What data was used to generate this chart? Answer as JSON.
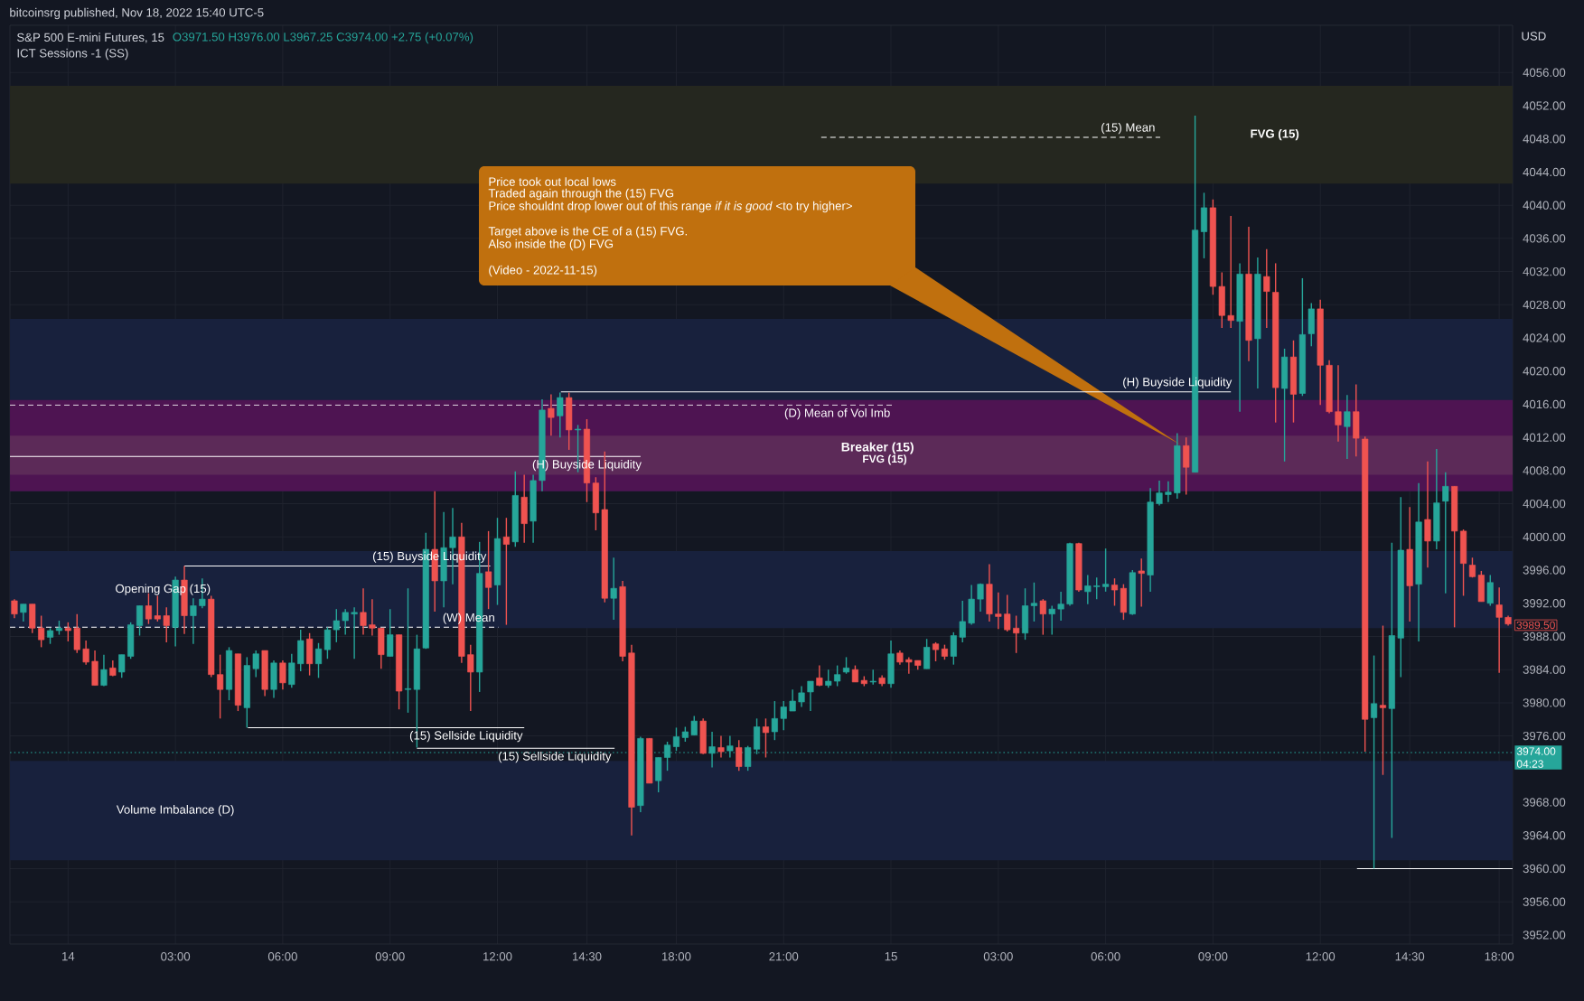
{
  "chart_data": {
    "type": "candlestick",
    "title": "S&P 500 E-mini Futures, 15",
    "ylabel": "USD",
    "annotations": [
      "bitcoinsrg published, Nov 18, 2022 15:40 UTC-5",
      "O3971.50 H3976.00 L3967.25 C3974.00 +2.75 (+0.07%)",
      "ICT Sessions -1 (SS)",
      "Price took out local lows",
      "Traded again through the (15) FVG",
      "Price shouldnt drop lower out of this range *if it is good* <to try higher>",
      "Target above is the CE of a (15) FVG.",
      "Also inside the (D) FVG",
      "(Video - 2022-11-15)",
      "3989.50",
      "FVG (15)"
    ],
    "categories": [
      null,
      null,
      null,
      null,
      null,
      null,
      "14",
      null,
      null,
      null,
      null,
      null,
      null,
      null,
      null,
      null,
      null,
      null,
      "03:00",
      null,
      null,
      null,
      null,
      null,
      null,
      null,
      null,
      null,
      null,
      null,
      "06:00",
      null,
      null,
      null,
      null,
      null,
      null,
      null,
      null,
      null,
      null,
      null,
      "09:00",
      null,
      null,
      null,
      null,
      null,
      null,
      null,
      null,
      null,
      null,
      null,
      "12:00",
      null,
      null,
      null,
      null,
      null,
      null,
      null,
      null,
      null,
      "14:30",
      null,
      null,
      null,
      null,
      null,
      null,
      null,
      null,
      null,
      "18:00",
      null,
      null,
      null,
      null,
      null,
      null,
      null,
      null,
      null,
      null,
      null,
      "21:00",
      null,
      null,
      null,
      null,
      null,
      null,
      null,
      null,
      null,
      null,
      null,
      "15",
      null,
      null,
      null,
      null,
      null,
      null,
      null,
      null,
      null,
      null,
      null,
      "03:00",
      null,
      null,
      null,
      null,
      null,
      null,
      null,
      null,
      null,
      null,
      null,
      "06:00",
      null,
      null,
      null,
      null,
      null,
      null,
      null,
      null,
      null,
      null,
      null,
      "09:00",
      null,
      null,
      null,
      null,
      null,
      null,
      null,
      null,
      null,
      null,
      null,
      "12:00",
      null,
      null,
      null,
      null,
      null,
      null,
      null,
      null,
      null,
      "14:30",
      null,
      null,
      null,
      null,
      null,
      null,
      null,
      null,
      null,
      "18:00",
      null
    ],
    "colors": [
      "#ef5350",
      "#26a69a",
      "#ef5350",
      "#ef5350",
      "#26a69a",
      "#26a69a",
      "#ef5350",
      "#ef5350",
      "#ef5350",
      "#ef5350",
      "#26a69a",
      "#ef5350",
      "#26a69a",
      "#26a69a",
      "#26a69a",
      "#ef5350",
      "#ef5350",
      "#ef5350",
      "#26a69a",
      "#ef5350",
      "#26a69a",
      "#26a69a",
      "#ef5350",
      "#ef5350",
      "#26a69a",
      "#ef5350",
      "#26a69a",
      "#26a69a",
      "#ef5350",
      "#26a69a",
      "#ef5350",
      "#26a69a",
      "#26a69a",
      "#ef5350",
      "#26a69a",
      "#26a69a",
      "#26a69a",
      "#26a69a",
      "#26a69a",
      "#ef5350",
      "#ef5350",
      "#ef5350",
      "#26a69a",
      "#ef5350",
      "#26a69a",
      "#26a69a",
      "#26a69a",
      "#ef5350",
      "#26a69a",
      "#26a69a",
      "#ef5350",
      "#ef5350",
      "#26a69a",
      "#ef5350",
      "#26a69a",
      "#ef5350",
      "#26a69a",
      "#ef5350",
      "#26a69a",
      "#26a69a",
      "#ef5350",
      "#26a69a",
      "#ef5350",
      "#26a69a",
      "#ef5350",
      "#ef5350",
      "#ef5350",
      "#26a69a",
      "#ef5350",
      "#ef5350",
      "#26a69a",
      "#ef5350",
      "#26a69a",
      "#26a69a",
      "#26a69a",
      "#26a69a",
      "#26a69a",
      "#ef5350",
      "#26a69a",
      "#ef5350",
      "#26a69a",
      "#ef5350",
      "#26a69a",
      "#26a69a",
      "#ef5350",
      "#26a69a",
      "#26a69a",
      "#26a69a",
      "#26a69a",
      "#26a69a",
      "#ef5350",
      "#26a69a",
      "#26a69a",
      "#26a69a",
      "#ef5350",
      "#ef5350",
      "#26a69a",
      "#ef5350",
      "#26a69a",
      "#ef5350",
      "#ef5350",
      "#ef5350",
      "#26a69a",
      "#ef5350",
      "#ef5350",
      "#26a69a",
      "#26a69a",
      "#26a69a",
      "#26a69a",
      "#ef5350",
      "#ef5350",
      "#ef5350",
      "#ef5350",
      "#26a69a",
      "#26a69a",
      "#ef5350",
      "#26a69a",
      "#26a69a",
      "#26a69a",
      "#ef5350",
      "#26a69a",
      "#26a69a",
      "#26a69a",
      "#ef5350",
      "#ef5350",
      "#26a69a",
      "#ef5350",
      "#26a69a",
      "#26a69a",
      "#26a69a",
      "#26a69a",
      "#ef5350",
      "#26a69a",
      "#26a69a",
      "#ef5350",
      "#ef5350",
      "#ef5350",
      "#26a69a",
      "#ef5350",
      "#26a69a",
      "#ef5350",
      "#ef5350",
      "#26a69a",
      "#ef5350",
      "#26a69a",
      "#26a69a",
      "#ef5350",
      "#ef5350",
      "#ef5350",
      "#26a69a",
      "#ef5350",
      "#ef5350",
      "#26a69a",
      "#ef5350",
      "#26a69a",
      "#26a69a",
      "#ef5350",
      "#26a69a",
      "#ef5350",
      "#26a69a",
      "#26a69a",
      "#ef5350",
      "#ef5350",
      "#ef5350",
      "#ef5350",
      "#26a69a",
      "#ef5350",
      "#ef5350"
    ],
    "ohlc": [
      [
        3992.3,
        3992.5,
        3990.2,
        3990.7
      ],
      [
        3990.9,
        3991.9,
        3989.8,
        3991.9
      ],
      [
        3991.9,
        3991.9,
        3988.4,
        3989.0
      ],
      [
        3989.0,
        3990.5,
        3986.7,
        3987.6
      ],
      [
        3987.9,
        3989.0,
        3987.1,
        3988.7
      ],
      [
        3988.7,
        3989.9,
        3988.2,
        3989.0
      ],
      [
        3989.0,
        3989.7,
        3987.4,
        3988.7
      ],
      [
        3989.0,
        3990.7,
        3986.0,
        3986.4
      ],
      [
        3986.5,
        3987.5,
        3984.6,
        3984.9
      ],
      [
        3985.0,
        3986.3,
        3982.1,
        3982.1
      ],
      [
        3982.1,
        3985.8,
        3982.0,
        3984.0
      ],
      [
        3984.2,
        3985.1,
        3983.2,
        3983.3
      ],
      [
        3983.7,
        3985.8,
        3983.0,
        3985.8
      ],
      [
        3985.6,
        3989.7,
        3985.3,
        3989.4
      ],
      [
        3989.3,
        3991.7,
        3988.1,
        3991.7
      ],
      [
        3991.7,
        3993.2,
        3989.5,
        3990.1
      ],
      [
        3990.5,
        3992.9,
        3989.8,
        3990.1
      ],
      [
        3990.5,
        3991.5,
        3987.3,
        3989.3
      ],
      [
        3989.1,
        3995.2,
        3986.8,
        3994.8
      ],
      [
        3994.8,
        3996.5,
        3988.3,
        3990.5
      ],
      [
        3990.5,
        3992.6,
        3987.1,
        3991.7
      ],
      [
        3991.7,
        3995.0,
        3991.4,
        3992.5
      ],
      [
        3992.5,
        3992.9,
        3983.1,
        3983.4
      ],
      [
        3983.4,
        3985.8,
        3978.1,
        3981.6
      ],
      [
        3981.6,
        3986.7,
        3980.3,
        3986.3
      ],
      [
        3985.9,
        3985.9,
        3979.0,
        3979.7
      ],
      [
        3979.4,
        3985.5,
        3977.0,
        3984.5
      ],
      [
        3984.1,
        3986.3,
        3983.1,
        3985.9
      ],
      [
        3986.3,
        3986.3,
        3980.8,
        3981.6
      ],
      [
        3981.6,
        3985.1,
        3980.6,
        3984.8
      ],
      [
        3984.8,
        3985.1,
        3981.6,
        3982.4
      ],
      [
        3982.2,
        3985.9,
        3981.8,
        3984.8
      ],
      [
        3984.7,
        3988.8,
        3983.8,
        3987.5
      ],
      [
        3987.7,
        3988.4,
        3983.3,
        3984.7
      ],
      [
        3984.7,
        3987.2,
        3983.0,
        3986.5
      ],
      [
        3986.4,
        3989.1,
        3985.3,
        3988.8
      ],
      [
        3988.8,
        3991.3,
        3987.3,
        3989.9
      ],
      [
        3989.9,
        3991.3,
        3988.2,
        3990.9
      ],
      [
        3990.7,
        3991.5,
        3985.3,
        3990.9
      ],
      [
        3990.9,
        3993.8,
        3988.2,
        3989.3
      ],
      [
        3989.4,
        3992.5,
        3988.1,
        3989.0
      ],
      [
        3989.0,
        3989.0,
        3984.1,
        3985.8
      ],
      [
        3985.6,
        3991.3,
        3985.6,
        3988.2
      ],
      [
        3988.2,
        3988.2,
        3979.2,
        3981.4
      ],
      [
        3981.6,
        3993.8,
        3978.8,
        3981.7
      ],
      [
        3981.6,
        3988.2,
        3974.6,
        3986.5
      ],
      [
        3986.6,
        4000.5,
        3986.5,
        3998.5
      ],
      [
        3998.5,
        4005.5,
        3991.0,
        3994.7
      ],
      [
        3994.7,
        4003.0,
        3991.5,
        3998.7
      ],
      [
        3998.7,
        4003.5,
        3994.3,
        4000.0
      ],
      [
        4000.0,
        4001.7,
        3984.8,
        3985.6
      ],
      [
        3985.8,
        3987.0,
        3979.0,
        3983.7
      ],
      [
        3983.7,
        3999.4,
        3981.3,
        3995.6
      ],
      [
        3995.8,
        4000.7,
        3991.3,
        3993.9
      ],
      [
        3994.2,
        4002.3,
        3991.8,
        3999.8
      ],
      [
        4000.0,
        4002.3,
        3989.4,
        3999.1
      ],
      [
        3999.4,
        4007.9,
        3998.8,
        4005.0
      ],
      [
        4004.8,
        4007.5,
        3999.3,
        4001.6
      ],
      [
        4001.9,
        4007.5,
        3999.3,
        4006.8
      ],
      [
        4006.8,
        4016.6,
        4005.5,
        4015.3
      ],
      [
        4015.5,
        4017.2,
        4012.2,
        4014.4
      ],
      [
        4014.6,
        4017.4,
        4012.0,
        4016.8
      ],
      [
        4016.8,
        4017.4,
        4010.5,
        4012.9
      ],
      [
        4012.9,
        4013.5,
        4007.8,
        4013.0
      ],
      [
        4013.0,
        4014.2,
        4004.2,
        4006.5
      ],
      [
        4006.5,
        4007.2,
        4000.8,
        4002.9
      ],
      [
        4003.3,
        4010.3,
        3992.1,
        3992.6
      ],
      [
        3992.6,
        3997.5,
        3990.0,
        3993.8
      ],
      [
        3994.0,
        3994.7,
        3985.0,
        3985.6
      ],
      [
        3986.0,
        3987.0,
        3964.0,
        3967.4
      ],
      [
        3967.6,
        3975.9,
        3966.8,
        3975.7
      ],
      [
        3975.7,
        3975.7,
        3970.3,
        3970.3
      ],
      [
        3970.6,
        3973.4,
        3969.2,
        3973.4
      ],
      [
        3973.4,
        3975.3,
        3971.8,
        3974.9
      ],
      [
        3974.7,
        3977.0,
        3974.2,
        3975.9
      ],
      [
        3975.8,
        3977.1,
        3975.3,
        3976.5
      ],
      [
        3976.1,
        3978.4,
        3976.1,
        3977.8
      ],
      [
        3977.8,
        3978.1,
        3973.8,
        3973.9
      ],
      [
        3973.9,
        3976.5,
        3972.2,
        3974.7
      ],
      [
        3974.6,
        3976.0,
        3973.4,
        3974.1
      ],
      [
        3974.2,
        3976.0,
        3973.4,
        3974.8
      ],
      [
        3974.6,
        3975.5,
        3971.8,
        3972.3
      ],
      [
        3972.3,
        3974.8,
        3971.8,
        3974.6
      ],
      [
        3974.4,
        3978.1,
        3973.8,
        3977.1
      ],
      [
        3977.1,
        3978.1,
        3973.4,
        3976.4
      ],
      [
        3976.5,
        3980.2,
        3975.5,
        3978.1
      ],
      [
        3978.1,
        3980.2,
        3976.7,
        3979.5
      ],
      [
        3979.0,
        3981.6,
        3979.0,
        3980.2
      ],
      [
        3980.1,
        3982.0,
        3979.5,
        3981.2
      ],
      [
        3981.3,
        3982.6,
        3979.0,
        3982.6
      ],
      [
        3983.0,
        3984.5,
        3982.0,
        3982.1
      ],
      [
        3982.1,
        3984.0,
        3981.8,
        3982.6
      ],
      [
        3982.6,
        3984.5,
        3982.0,
        3983.4
      ],
      [
        3983.7,
        3985.5,
        3983.5,
        3984.2
      ],
      [
        3984.0,
        3984.5,
        3982.5,
        3982.5
      ],
      [
        3982.7,
        3983.2,
        3982.0,
        3982.3
      ],
      [
        3982.5,
        3984.0,
        3982.2,
        3982.6
      ],
      [
        3983.0,
        3983.3,
        3982.0,
        3982.3
      ],
      [
        3982.3,
        3987.5,
        3981.8,
        3985.9
      ],
      [
        3986.0,
        3986.3,
        3984.6,
        3984.9
      ],
      [
        3985.2,
        3985.5,
        3983.5,
        3984.9
      ],
      [
        3985.1,
        3985.1,
        3984.0,
        3984.5
      ],
      [
        3984.1,
        3987.7,
        3984.1,
        3986.7
      ],
      [
        3987.1,
        3987.3,
        3985.0,
        3986.4
      ],
      [
        3986.5,
        3987.0,
        3985.2,
        3985.6
      ],
      [
        3985.6,
        3988.5,
        3984.6,
        3988.1
      ],
      [
        3987.9,
        3992.3,
        3987.3,
        3989.8
      ],
      [
        3989.6,
        3994.2,
        3989.4,
        3992.5
      ],
      [
        3992.5,
        3994.4,
        3991.0,
        3994.3
      ],
      [
        3994.3,
        3996.7,
        3989.8,
        3990.7
      ],
      [
        3990.7,
        3993.3,
        3988.9,
        3990.4
      ],
      [
        3990.7,
        3993.0,
        3988.6,
        3988.8
      ],
      [
        3989.0,
        3990.5,
        3986.0,
        3988.4
      ],
      [
        3988.4,
        3993.8,
        3987.6,
        3991.7
      ],
      [
        3991.7,
        3994.5,
        3989.8,
        3992.0
      ],
      [
        3992.3,
        3992.5,
        3988.2,
        3990.7
      ],
      [
        3990.7,
        3991.7,
        3988.2,
        3991.3
      ],
      [
        3991.3,
        3993.4,
        3989.9,
        3991.9
      ],
      [
        3991.9,
        3999.3,
        3991.7,
        3999.2
      ],
      [
        3999.2,
        3999.3,
        3993.4,
        3993.6
      ],
      [
        3993.4,
        3995.4,
        3991.9,
        3994.1
      ],
      [
        3994.0,
        3995.1,
        3992.5,
        3994.1
      ],
      [
        3994.0,
        3998.6,
        3993.4,
        3994.3
      ],
      [
        3994.2,
        3995.0,
        3991.7,
        3993.6
      ],
      [
        3993.8,
        3994.3,
        3990.0,
        3990.9
      ],
      [
        3990.7,
        3996.0,
        3990.6,
        3995.7
      ],
      [
        3995.9,
        3997.4,
        3991.6,
        3995.6
      ],
      [
        3995.4,
        4005.9,
        3993.4,
        4004.2
      ],
      [
        4004.0,
        4006.8,
        4003.8,
        4005.3
      ],
      [
        4005.1,
        4006.7,
        4004.2,
        4005.4
      ],
      [
        4005.3,
        4012.5,
        4004.6,
        4011.0
      ],
      [
        4011.0,
        4012.0,
        4005.1,
        4008.4
      ],
      [
        4007.8,
        4050.8,
        4007.8,
        4037.0
      ],
      [
        4036.8,
        4041.5,
        4033.6,
        4039.7
      ],
      [
        4039.7,
        4040.7,
        4029.2,
        4030.2
      ],
      [
        4030.2,
        4031.9,
        4025.2,
        4026.7
      ],
      [
        4026.7,
        4038.7,
        4025.2,
        4026.1
      ],
      [
        4026.0,
        4033.0,
        4015.1,
        4031.7
      ],
      [
        4031.7,
        4037.4,
        4021.2,
        4023.7
      ],
      [
        4023.9,
        4033.7,
        4017.9,
        4031.7
      ],
      [
        4031.4,
        4034.7,
        4025.2,
        4029.6
      ],
      [
        4029.5,
        4033.0,
        4013.8,
        4018.0
      ],
      [
        4017.9,
        4022.7,
        4009.1,
        4021.7
      ],
      [
        4021.7,
        4023.7,
        4013.8,
        4017.2
      ],
      [
        4017.3,
        4031.2,
        4017.0,
        4024.4
      ],
      [
        4024.5,
        4028.2,
        4023.0,
        4027.5
      ],
      [
        4027.5,
        4028.6,
        4015.9,
        4020.7
      ],
      [
        4020.7,
        4021.3,
        4014.9,
        4015.1
      ],
      [
        4015.1,
        4020.7,
        4011.5,
        4013.5
      ],
      [
        4013.3,
        4017.1,
        4009.4,
        4015.1
      ],
      [
        4015.1,
        4018.4,
        4009.7,
        4011.9
      ],
      [
        4011.8,
        4012.1,
        3974.1,
        3978.0
      ],
      [
        3978.2,
        3985.7,
        3960.0,
        3979.9
      ],
      [
        3979.7,
        3989.3,
        3971.3,
        3979.4
      ],
      [
        3979.3,
        3999.3,
        3963.7,
        3988.1
      ],
      [
        3987.8,
        4004.8,
        3983.1,
        3998.4
      ],
      [
        3998.5,
        4003.6,
        3989.8,
        3994.1
      ],
      [
        3994.3,
        4006.5,
        3987.4,
        4001.8
      ],
      [
        4002.1,
        4009.1,
        3996.3,
        3999.5
      ],
      [
        3999.5,
        4010.6,
        3998.5,
        4004.1
      ],
      [
        4004.3,
        4007.8,
        3993.2,
        4006.1
      ],
      [
        4006.1,
        4006.1,
        3989.1,
        4000.7
      ],
      [
        4000.7,
        4000.9,
        3992.9,
        3996.8
      ],
      [
        3996.6,
        3997.5,
        3995.1,
        3995.2
      ],
      [
        3995.4,
        3995.9,
        3992.2,
        3992.2
      ],
      [
        3992.0,
        3995.4,
        3991.7,
        3994.5
      ],
      [
        3991.8,
        3993.9,
        3983.6,
        3990.3
      ],
      [
        3990.3,
        3990.5,
        3989.3,
        3989.5
      ]
    ],
    "ylim": [
      3950.9,
      4061.7
    ],
    "yticks": [
      {
        "value": 3952,
        "label": "3952.00"
      },
      {
        "value": 3956,
        "label": "3956.00"
      },
      {
        "value": 3960,
        "label": "3960.00"
      },
      {
        "value": 3964,
        "label": "3964.00"
      },
      {
        "value": 3968,
        "label": "3968.00"
      },
      {
        "value": 3972,
        "label": null
      },
      {
        "value": 3976,
        "label": "3976.00"
      },
      {
        "value": 3980,
        "label": "3980.00"
      },
      {
        "value": 3984,
        "label": "3984.00"
      },
      {
        "value": 3988,
        "label": "3988.00"
      },
      {
        "value": 3992,
        "label": "3992.00"
      },
      {
        "value": 3996,
        "label": "3996.00"
      },
      {
        "value": 4000,
        "label": "4000.00"
      },
      {
        "value": 4004,
        "label": "4004.00"
      },
      {
        "value": 4008,
        "label": "4008.00"
      },
      {
        "value": 4012,
        "label": "4012.00"
      },
      {
        "value": 4016,
        "label": "4016.00"
      },
      {
        "value": 4020,
        "label": "4020.00"
      },
      {
        "value": 4024,
        "label": "4024.00"
      },
      {
        "value": 4028,
        "label": "4028.00"
      },
      {
        "value": 4032,
        "label": "4032.00"
      },
      {
        "value": 4036,
        "label": "4036.00"
      },
      {
        "value": 4040,
        "label": "4040.00"
      },
      {
        "value": 4044,
        "label": "4044.00"
      },
      {
        "value": 4048,
        "label": "4048.00"
      },
      {
        "value": 4052,
        "label": "4052.00"
      },
      {
        "value": 4056,
        "label": "4056.00"
      }
    ],
    "grid": true,
    "bands": [
      {
        "axis": "y",
        "from": 4042.6,
        "to": 4054.4,
        "label": "FVG (15)",
        "color": "#25271f"
      },
      {
        "axis": "y",
        "from": 4005.5,
        "to": 4026.3,
        "color": "#18213d"
      },
      {
        "axis": "y",
        "from": 3989.0,
        "to": 3998.3,
        "label": "Opening Gap (15)",
        "color": "#18213d"
      },
      {
        "axis": "y",
        "from": 3961.0,
        "to": 3973.0,
        "label": "Volume Imbalance (D)",
        "color": "#18213d"
      },
      {
        "axis": "y",
        "from": 4005.5,
        "to": 4016.5,
        "color": "#4e1452"
      },
      {
        "axis": "y",
        "from": 4007.5,
        "to": 4012.2,
        "label": "Breaker (15)",
        "color": "#5c2a58"
      }
    ],
    "ref_lines": [
      {
        "axis": "y",
        "value": 4048.2,
        "label": "(15) Mean",
        "color": "#ffffff",
        "line_style": "dashed"
      },
      {
        "axis": "y",
        "value": 4017.5,
        "label": "(H) Buyside Liquidity",
        "color": "#ffffff"
      },
      {
        "axis": "y",
        "value": 4015.9,
        "label": "(D) Mean of Vol Imb",
        "color": "#ffffff",
        "line_style": "dashed"
      },
      {
        "axis": "y",
        "value": 4009.7,
        "label": "(H) Buyside Liquidity",
        "color": "#ffffff"
      },
      {
        "axis": "y",
        "value": 3996.5,
        "label": "(15) Buyside Liquidity",
        "color": "#ffffff"
      },
      {
        "axis": "y",
        "value": 3989.1,
        "label": "(W) Mean",
        "color": "#ffffff",
        "line_style": "dashed"
      },
      {
        "axis": "y",
        "value": 3977.0,
        "label": "(15) Sellside Liquidity",
        "color": "#ffffff"
      },
      {
        "axis": "y",
        "value": 3974.5,
        "label": "(15) Sellside Liquidity",
        "color": "#ffffff"
      },
      {
        "axis": "y",
        "value": 3960.0,
        "color": "#ffffff"
      },
      {
        "axis": "y",
        "value": 3974.0,
        "label": "3974.00 04:23",
        "color": "#26a69a",
        "line_style": "dotted"
      }
    ]
  }
}
